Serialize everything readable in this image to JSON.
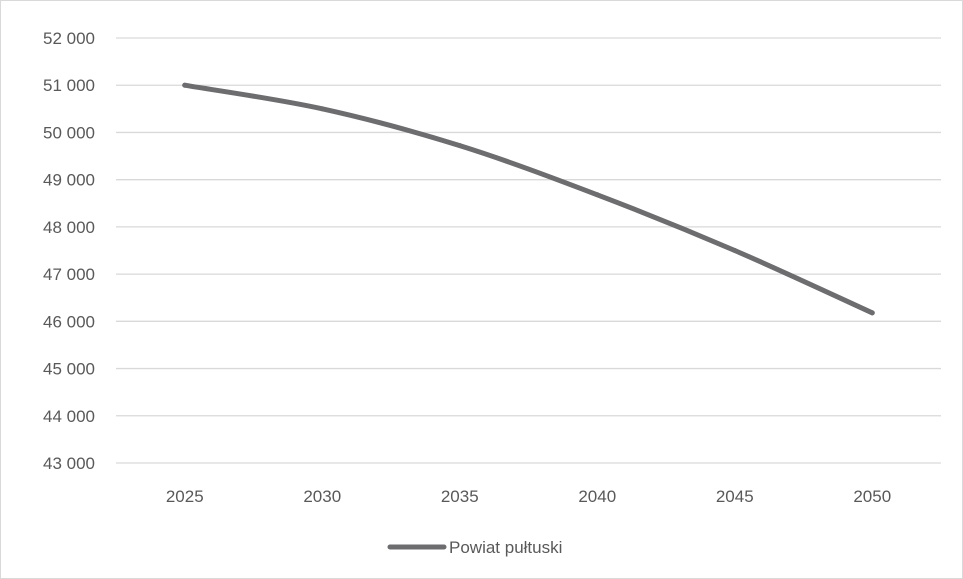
{
  "chart_data": {
    "type": "line",
    "title": "",
    "xlabel": "",
    "ylabel": "",
    "categories": [
      "2025",
      "2030",
      "2035",
      "2040",
      "2045",
      "2050"
    ],
    "series": [
      {
        "name": "Powiat pułtuski",
        "values": [
          51000,
          50500,
          49720,
          48680,
          47500,
          46180
        ],
        "color": "#6d6d70"
      }
    ],
    "ylim": [
      43000,
      52000
    ],
    "y_ticks": [
      43000,
      44000,
      45000,
      46000,
      47000,
      48000,
      49000,
      50000,
      51000,
      52000
    ],
    "y_tick_labels": [
      "43 000",
      "44 000",
      "45 000",
      "46 000",
      "47 000",
      "48 000",
      "49 000",
      "50 000",
      "51 000",
      "52 000"
    ],
    "grid": true,
    "grid_color": "#d9d9d9",
    "legend_position": "bottom"
  }
}
